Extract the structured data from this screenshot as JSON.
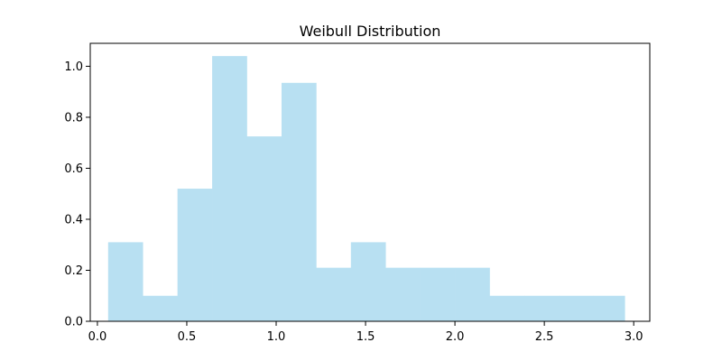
{
  "chart_data": {
    "type": "bar",
    "title": "Weibull Distribution",
    "xlabel": "",
    "ylabel": "",
    "xlim": [
      -0.04,
      3.09
    ],
    "ylim": [
      0,
      1.09
    ],
    "x_ticks": [
      "0.0",
      "0.5",
      "1.0",
      "1.5",
      "2.0",
      "2.5",
      "3.0"
    ],
    "y_ticks": [
      "0.0",
      "0.2",
      "0.4",
      "0.6",
      "0.8",
      "1.0"
    ],
    "bar_color": "#b8e0f2",
    "bin_edges": [
      0.06,
      0.254,
      0.448,
      0.642,
      0.836,
      1.03,
      1.224,
      1.418,
      1.612,
      1.806,
      2.0,
      2.194,
      2.388,
      2.582,
      2.776,
      2.95
    ],
    "values": [
      0.31,
      0.1,
      0.52,
      1.04,
      0.725,
      0.935,
      0.21,
      0.31,
      0.21,
      0.21,
      0.21,
      0.1,
      0.1,
      0.1,
      0.1
    ]
  }
}
